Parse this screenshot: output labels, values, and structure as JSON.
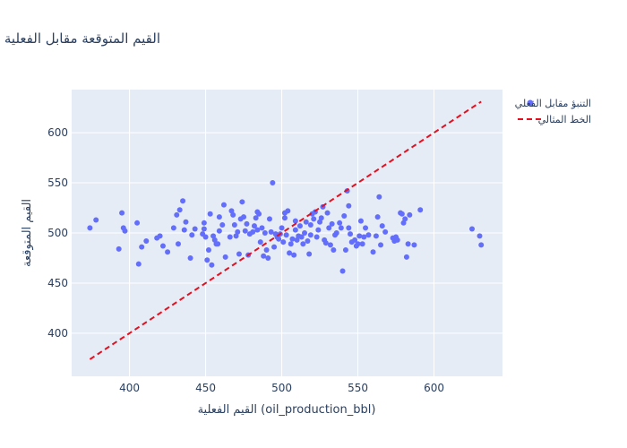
{
  "chart_data": {
    "type": "scatter",
    "title": "القيم المتوقعة مقابل الفعلية",
    "xlabel": "القيم الفعلية (oil_production_bbl)",
    "ylabel": "القيم المتوقعة",
    "xlim": [
      362,
      645
    ],
    "ylim": [
      357,
      643
    ],
    "xticks": [
      400,
      450,
      500,
      550,
      600
    ],
    "yticks": [
      400,
      450,
      500,
      550,
      600
    ],
    "grid": true,
    "legend_position": "top-right",
    "colors": {
      "points": "#636efa",
      "ideal": "#e4101f",
      "plot_bg": "#e5ecf6",
      "text": "#2a3f5f"
    },
    "series": [
      {
        "name": "التنبؤ مقابل الفعلي",
        "kind": "scatter",
        "points": [
          [
            374,
            505
          ],
          [
            378,
            513
          ],
          [
            393,
            484
          ],
          [
            395,
            520
          ],
          [
            396,
            505
          ],
          [
            397,
            502
          ],
          [
            405,
            510
          ],
          [
            406,
            469
          ],
          [
            408,
            486
          ],
          [
            411,
            492
          ],
          [
            418,
            495
          ],
          [
            420,
            497
          ],
          [
            422,
            487
          ],
          [
            425,
            481
          ],
          [
            429,
            505
          ],
          [
            431,
            518
          ],
          [
            432,
            489
          ],
          [
            433,
            523
          ],
          [
            435,
            532
          ],
          [
            436,
            503
          ],
          [
            437,
            511
          ],
          [
            440,
            475
          ],
          [
            441,
            498
          ],
          [
            443,
            504
          ],
          [
            448,
            499
          ],
          [
            449,
            510
          ],
          [
            449,
            504
          ],
          [
            450,
            496
          ],
          [
            451,
            473
          ],
          [
            452,
            483
          ],
          [
            453,
            519
          ],
          [
            454,
            468
          ],
          [
            455,
            497
          ],
          [
            456,
            493
          ],
          [
            457,
            489
          ],
          [
            458,
            489
          ],
          [
            459,
            502
          ],
          [
            459,
            516
          ],
          [
            461,
            508
          ],
          [
            462,
            528
          ],
          [
            463,
            476
          ],
          [
            466,
            496
          ],
          [
            467,
            522
          ],
          [
            468,
            518
          ],
          [
            469,
            508
          ],
          [
            470,
            497
          ],
          [
            471,
            501
          ],
          [
            472,
            479
          ],
          [
            473,
            514
          ],
          [
            474,
            531
          ],
          [
            475,
            516
          ],
          [
            476,
            502
          ],
          [
            477,
            509
          ],
          [
            478,
            478
          ],
          [
            479,
            499
          ],
          [
            481,
            501
          ],
          [
            482,
            507
          ],
          [
            483,
            515
          ],
          [
            484,
            521
          ],
          [
            484,
            503
          ],
          [
            485,
            519
          ],
          [
            486,
            491
          ],
          [
            487,
            505
          ],
          [
            488,
            477
          ],
          [
            489,
            500
          ],
          [
            490,
            483
          ],
          [
            491,
            475
          ],
          [
            492,
            514
          ],
          [
            493,
            501
          ],
          [
            494,
            550
          ],
          [
            495,
            486
          ],
          [
            496,
            499
          ],
          [
            497,
            496
          ],
          [
            498,
            494
          ],
          [
            499,
            499
          ],
          [
            500,
            505
          ],
          [
            501,
            491
          ],
          [
            502,
            520
          ],
          [
            502,
            515
          ],
          [
            503,
            498
          ],
          [
            504,
            522
          ],
          [
            505,
            480
          ],
          [
            506,
            489
          ],
          [
            507,
            494
          ],
          [
            508,
            478
          ],
          [
            509,
            512
          ],
          [
            509,
            503
          ],
          [
            510,
            493
          ],
          [
            511,
            497
          ],
          [
            512,
            507
          ],
          [
            513,
            496
          ],
          [
            514,
            489
          ],
          [
            515,
            500
          ],
          [
            516,
            511
          ],
          [
            517,
            492
          ],
          [
            518,
            479
          ],
          [
            519,
            498
          ],
          [
            519,
            508
          ],
          [
            520,
            519
          ],
          [
            521,
            514
          ],
          [
            522,
            521
          ],
          [
            523,
            496
          ],
          [
            524,
            503
          ],
          [
            525,
            511
          ],
          [
            526,
            515
          ],
          [
            527,
            526
          ],
          [
            528,
            493
          ],
          [
            529,
            490
          ],
          [
            530,
            520
          ],
          [
            531,
            505
          ],
          [
            532,
            488
          ],
          [
            533,
            509
          ],
          [
            534,
            483
          ],
          [
            535,
            498
          ],
          [
            536,
            500
          ],
          [
            538,
            510
          ],
          [
            539,
            505
          ],
          [
            540,
            462
          ],
          [
            541,
            517
          ],
          [
            542,
            483
          ],
          [
            543,
            542
          ],
          [
            544,
            505
          ],
          [
            544,
            527
          ],
          [
            545,
            499
          ],
          [
            546,
            491
          ],
          [
            548,
            493
          ],
          [
            549,
            487
          ],
          [
            550,
            489
          ],
          [
            551,
            497
          ],
          [
            552,
            512
          ],
          [
            553,
            489
          ],
          [
            554,
            496
          ],
          [
            555,
            505
          ],
          [
            557,
            498
          ],
          [
            560,
            481
          ],
          [
            562,
            497
          ],
          [
            563,
            516
          ],
          [
            564,
            536
          ],
          [
            565,
            488
          ],
          [
            566,
            507
          ],
          [
            568,
            501
          ],
          [
            573,
            495
          ],
          [
            574,
            492
          ],
          [
            575,
            496
          ],
          [
            576,
            493
          ],
          [
            578,
            520
          ],
          [
            579,
            519
          ],
          [
            580,
            510
          ],
          [
            581,
            514
          ],
          [
            582,
            476
          ],
          [
            583,
            489
          ],
          [
            584,
            518
          ],
          [
            587,
            488
          ],
          [
            591,
            523
          ],
          [
            625,
            504
          ],
          [
            630,
            497
          ],
          [
            631,
            488
          ]
        ]
      },
      {
        "name": "الخط المثالي",
        "kind": "line",
        "dash": "dashed",
        "x": [
          374,
          631
        ],
        "y": [
          374,
          631
        ]
      }
    ]
  }
}
